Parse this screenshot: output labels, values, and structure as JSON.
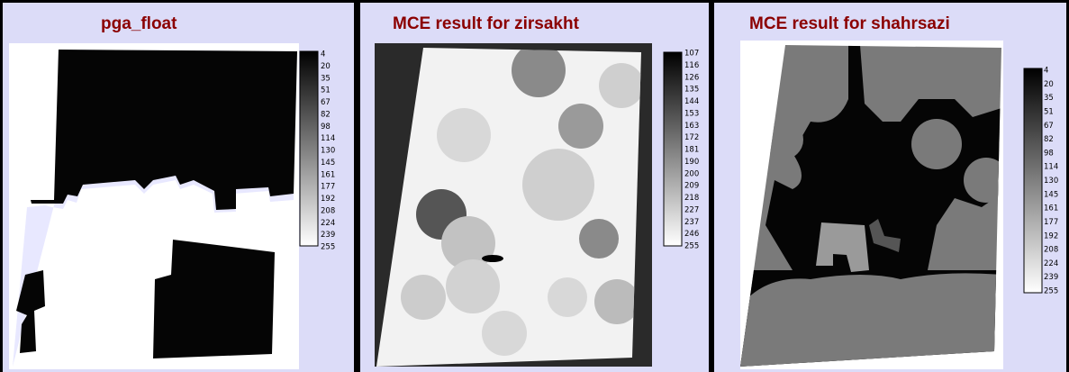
{
  "panels": [
    {
      "title": "pga_float",
      "legend": [
        4,
        20,
        35,
        51,
        67,
        82,
        98,
        114,
        130,
        145,
        161,
        177,
        192,
        208,
        224,
        239,
        255
      ]
    },
    {
      "title": "MCE result for zirsakht",
      "legend": [
        107,
        116,
        126,
        135,
        144,
        153,
        163,
        172,
        181,
        190,
        200,
        209,
        218,
        227,
        237,
        246,
        255
      ]
    },
    {
      "title": "MCE result for shahrsazi",
      "legend": [
        4,
        20,
        35,
        51,
        67,
        82,
        98,
        114,
        130,
        145,
        161,
        177,
        192,
        208,
        224,
        239,
        255
      ]
    }
  ]
}
